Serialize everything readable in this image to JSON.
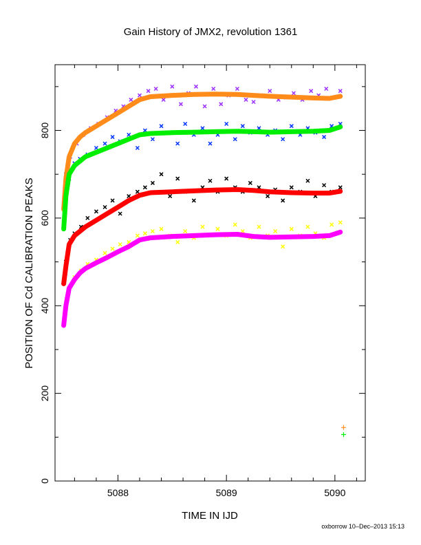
{
  "chart_data": {
    "type": "scatter",
    "title": "Gain History of JMX2, revolution 1361",
    "xlabel": "TIME IN IJD",
    "ylabel": "POSITION OF Cd CALIBRATION PEAKS",
    "xlim": [
      5087.42,
      5090.28
    ],
    "ylim": [
      0,
      950
    ],
    "xticks": [
      5088,
      5089,
      5090
    ],
    "yticks": [
      0,
      200,
      400,
      600,
      800
    ],
    "grid": false,
    "legend": "none",
    "colors": {
      "orange": "#ff8c1a",
      "purple": "#9b30ff",
      "green": "#00ee00",
      "blue": "#0033ff",
      "red": "#ff0000",
      "black": "#000000",
      "magenta": "#ff00ff",
      "yellow": "#ffff00"
    },
    "smooth": [
      {
        "color": "#ff8c1a",
        "x": [
          5087.5,
          5087.52,
          5087.55,
          5087.6,
          5087.65,
          5087.7,
          5087.8,
          5087.9,
          5088.0,
          5088.1,
          5088.2,
          5088.3,
          5088.5,
          5088.7,
          5088.9,
          5089.1,
          5089.25,
          5089.4,
          5089.6,
          5089.8,
          5089.95,
          5090.05
        ],
        "y": [
          620,
          690,
          740,
          770,
          785,
          795,
          810,
          825,
          840,
          855,
          870,
          877,
          880,
          882,
          883,
          882,
          880,
          878,
          876,
          874,
          873,
          878
        ]
      },
      {
        "color": "#00ee00",
        "x": [
          5087.5,
          5087.52,
          5087.55,
          5087.6,
          5087.65,
          5087.7,
          5087.8,
          5087.9,
          5088.0,
          5088.1,
          5088.2,
          5088.3,
          5088.5,
          5088.7,
          5088.9,
          5089.1,
          5089.25,
          5089.4,
          5089.6,
          5089.8,
          5089.95,
          5090.05
        ],
        "y": [
          575,
          650,
          700,
          720,
          730,
          740,
          750,
          760,
          770,
          780,
          790,
          793,
          795,
          796,
          797,
          798,
          797,
          796,
          797,
          798,
          800,
          808
        ]
      },
      {
        "color": "#ff0000",
        "x": [
          5087.5,
          5087.52,
          5087.55,
          5087.6,
          5087.65,
          5087.7,
          5087.8,
          5087.9,
          5088.0,
          5088.1,
          5088.2,
          5088.3,
          5088.5,
          5088.7,
          5088.9,
          5089.1,
          5089.25,
          5089.4,
          5089.6,
          5089.8,
          5089.95,
          5090.05
        ],
        "y": [
          450,
          490,
          540,
          560,
          570,
          580,
          595,
          610,
          625,
          640,
          652,
          658,
          660,
          662,
          664,
          665,
          663,
          660,
          658,
          657,
          657,
          661
        ]
      },
      {
        "color": "#ff00ff",
        "x": [
          5087.5,
          5087.52,
          5087.55,
          5087.6,
          5087.65,
          5087.7,
          5087.8,
          5087.9,
          5088.0,
          5088.1,
          5088.2,
          5088.3,
          5088.5,
          5088.7,
          5088.9,
          5089.1,
          5089.25,
          5089.4,
          5089.6,
          5089.8,
          5089.95,
          5090.05
        ],
        "y": [
          355,
          400,
          440,
          460,
          475,
          485,
          498,
          510,
          523,
          535,
          550,
          555,
          558,
          560,
          562,
          563,
          558,
          556,
          557,
          558,
          560,
          568
        ]
      }
    ],
    "scatter": [
      {
        "color": "#9b30ff",
        "x": [
          5087.52,
          5087.56,
          5087.62,
          5087.68,
          5087.75,
          5087.82,
          5087.9,
          5087.98,
          5088.05,
          5088.12,
          5088.2,
          5088.28,
          5088.35,
          5088.42,
          5088.5,
          5088.58,
          5088.65,
          5088.72,
          5088.8,
          5088.88,
          5088.95,
          5089.02,
          5089.1,
          5089.18,
          5089.25,
          5089.32,
          5089.4,
          5089.48,
          5089.55,
          5089.62,
          5089.7,
          5089.78,
          5089.85,
          5089.92,
          5090.0,
          5090.05
        ],
        "y": [
          700,
          740,
          770,
          790,
          805,
          815,
          830,
          845,
          855,
          870,
          880,
          890,
          895,
          870,
          900,
          860,
          885,
          900,
          855,
          895,
          860,
          880,
          895,
          870,
          865,
          880,
          890,
          870,
          875,
          885,
          870,
          890,
          880,
          895,
          875,
          890
        ]
      },
      {
        "color": "#0033ff",
        "x": [
          5087.55,
          5087.6,
          5087.65,
          5087.72,
          5087.8,
          5087.88,
          5087.95,
          5088.02,
          5088.1,
          5088.18,
          5088.25,
          5088.32,
          5088.4,
          5088.48,
          5088.55,
          5088.62,
          5088.7,
          5088.78,
          5088.85,
          5088.92,
          5089.0,
          5089.08,
          5089.15,
          5089.22,
          5089.3,
          5089.38,
          5089.45,
          5089.52,
          5089.6,
          5089.68,
          5089.75,
          5089.82,
          5089.9,
          5089.97,
          5090.05
        ],
        "y": [
          690,
          725,
          735,
          745,
          760,
          770,
          785,
          775,
          790,
          760,
          800,
          780,
          810,
          795,
          770,
          815,
          790,
          805,
          770,
          790,
          815,
          780,
          810,
          795,
          805,
          790,
          800,
          780,
          810,
          790,
          805,
          795,
          785,
          810,
          815
        ]
      },
      {
        "color": "#000000",
        "x": [
          5087.52,
          5087.56,
          5087.6,
          5087.66,
          5087.72,
          5087.8,
          5087.88,
          5087.95,
          5088.02,
          5088.1,
          5088.18,
          5088.25,
          5088.32,
          5088.4,
          5088.48,
          5088.55,
          5088.62,
          5088.7,
          5088.78,
          5088.85,
          5088.92,
          5089.0,
          5089.08,
          5089.15,
          5089.22,
          5089.3,
          5089.38,
          5089.45,
          5089.52,
          5089.6,
          5089.68,
          5089.75,
          5089.82,
          5089.9,
          5089.97,
          5090.05
        ],
        "y": [
          500,
          550,
          565,
          580,
          600,
          615,
          625,
          640,
          610,
          650,
          660,
          670,
          680,
          700,
          650,
          690,
          660,
          640,
          670,
          685,
          660,
          690,
          670,
          660,
          680,
          670,
          650,
          665,
          640,
          670,
          660,
          685,
          650,
          675,
          660,
          670
        ]
      },
      {
        "color": "#ffff00",
        "x": [
          5087.55,
          5087.6,
          5087.66,
          5087.72,
          5087.8,
          5087.88,
          5087.95,
          5088.02,
          5088.1,
          5088.18,
          5088.25,
          5088.32,
          5088.4,
          5088.48,
          5088.55,
          5088.62,
          5088.7,
          5088.78,
          5088.85,
          5088.92,
          5089.0,
          5089.08,
          5089.15,
          5089.22,
          5089.3,
          5089.38,
          5089.45,
          5089.52,
          5089.6,
          5089.68,
          5089.75,
          5089.82,
          5089.9,
          5089.97,
          5090.05
        ],
        "y": [
          440,
          465,
          480,
          495,
          505,
          520,
          530,
          540,
          545,
          560,
          565,
          570,
          575,
          560,
          545,
          570,
          555,
          580,
          560,
          575,
          560,
          585,
          570,
          555,
          580,
          560,
          570,
          535,
          575,
          560,
          580,
          565,
          555,
          585,
          590
        ]
      }
    ],
    "outliers": [
      {
        "color": "#ff8c1a",
        "x": 5090.08,
        "y": 122
      },
      {
        "color": "#00ee00",
        "x": 5090.08,
        "y": 106
      }
    ],
    "footer": "oxborrow 10–Dec–2013 15:13"
  }
}
